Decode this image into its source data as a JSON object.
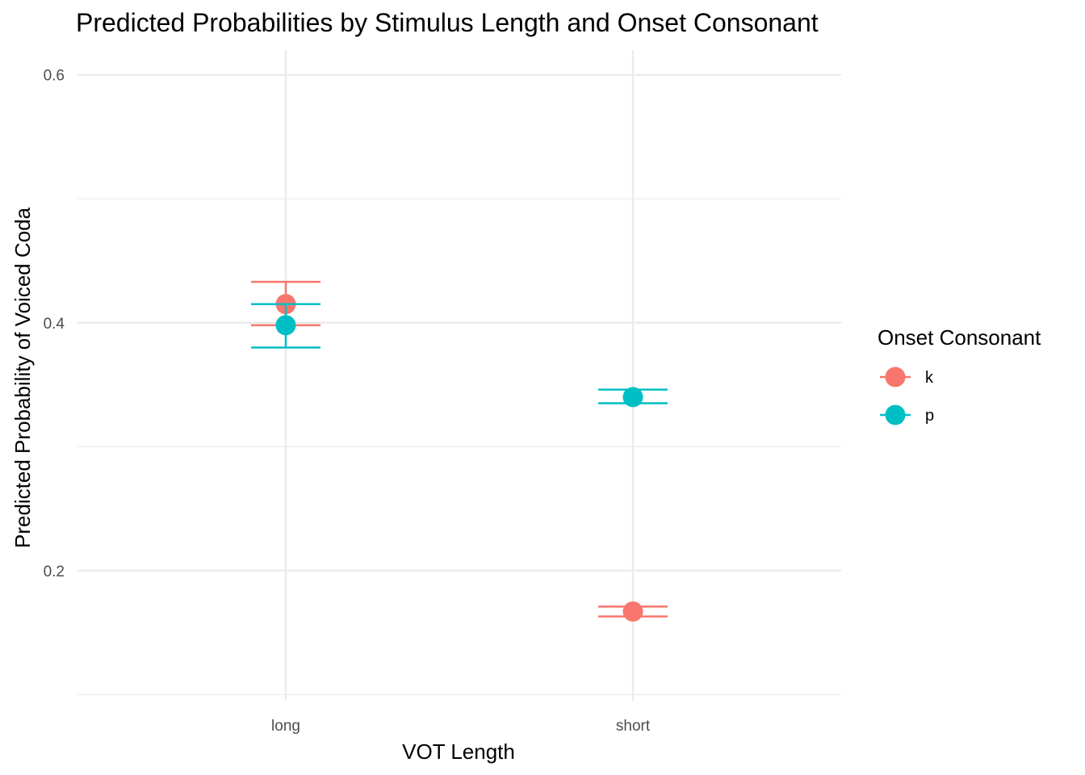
{
  "chart_data": {
    "type": "scatter",
    "title": "Predicted Probabilities by Stimulus Length and Onset Consonant",
    "xlabel": "VOT Length",
    "ylabel": "Predicted Probability of Voiced Coda",
    "categories": [
      "long",
      "short"
    ],
    "ylim": [
      0.095,
      0.62
    ],
    "yticks": [
      0.2,
      0.4,
      0.6
    ],
    "ytick_labels": [
      "0.2",
      "0.4",
      "0.6"
    ],
    "grid": true,
    "legend": {
      "title": "Onset Consonant",
      "placement": "right"
    },
    "series": [
      {
        "name": "k",
        "color": "#F8766D",
        "points": [
          {
            "x": "long",
            "y": 0.415,
            "ymin": 0.398,
            "ymax": 0.433
          },
          {
            "x": "short",
            "y": 0.167,
            "ymin": 0.163,
            "ymax": 0.171
          }
        ]
      },
      {
        "name": "p",
        "color": "#00BFC4",
        "points": [
          {
            "x": "long",
            "y": 0.398,
            "ymin": 0.38,
            "ymax": 0.415
          },
          {
            "x": "short",
            "y": 0.34,
            "ymin": 0.335,
            "ymax": 0.346
          }
        ]
      }
    ]
  }
}
